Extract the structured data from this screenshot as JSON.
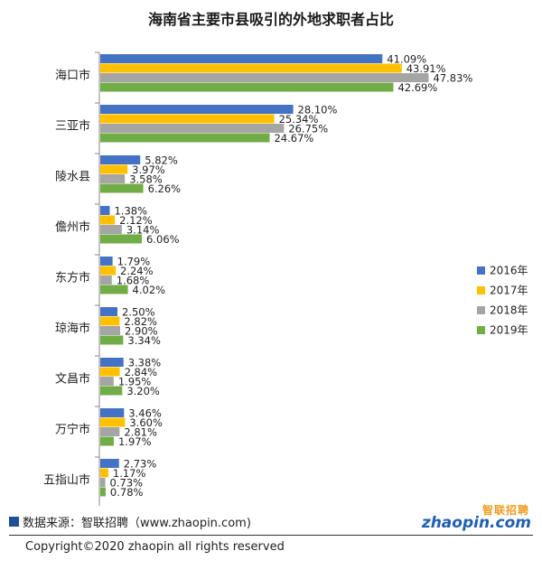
{
  "colors": {
    "s2016": "#4472c4",
    "s2017": "#ffc000",
    "s2018": "#a5a5a5",
    "s2019": "#70ad47",
    "axis": "#888888",
    "source_square": "#1f4e9c",
    "logo_cn": "#f29a1b",
    "logo_en": "#1d5fb5"
  },
  "chart_data": {
    "type": "bar",
    "orientation": "horizontal",
    "title": "海南省主要市县吸引的外地求职者占比",
    "xlabel": "",
    "ylabel": "",
    "xlim": [
      0,
      50
    ],
    "grid": false,
    "legend_position": "right",
    "categories": [
      "海口市",
      "三亚市",
      "陵水县",
      "儋州市",
      "东方市",
      "琼海市",
      "文昌市",
      "万宁市",
      "五指山市"
    ],
    "series": [
      {
        "name": "2016年",
        "values": [
          41.09,
          28.1,
          5.82,
          1.38,
          1.79,
          2.5,
          3.38,
          3.46,
          2.73
        ],
        "labels": [
          "41.09%",
          "28.10%",
          "5.82%",
          "1.38%",
          "1.79%",
          "2.50%",
          "3.38%",
          "3.46%",
          "2.73%"
        ]
      },
      {
        "name": "2017年",
        "values": [
          43.91,
          25.34,
          3.97,
          2.12,
          2.24,
          2.82,
          2.84,
          3.6,
          1.17
        ],
        "labels": [
          "43.91%",
          "25.34%",
          "3.97%",
          "2.12%",
          "2.24%",
          "2.82%",
          "2.84%",
          "3.60%",
          "1.17%"
        ]
      },
      {
        "name": "2018年",
        "values": [
          47.83,
          26.75,
          3.58,
          3.14,
          1.68,
          2.9,
          1.95,
          2.81,
          0.73
        ],
        "labels": [
          "47.83%",
          "26.75%",
          "3.58%",
          "3.14%",
          "1.68%",
          "2.90%",
          "1.95%",
          "2.81%",
          "0.73%"
        ]
      },
      {
        "name": "2019年",
        "values": [
          42.69,
          24.67,
          6.26,
          6.06,
          4.02,
          3.34,
          3.2,
          1.97,
          0.78
        ],
        "labels": [
          "42.69%",
          "24.67%",
          "6.26%",
          "6.06%",
          "4.02%",
          "3.34%",
          "3.20%",
          "1.97%",
          "0.78%"
        ]
      }
    ]
  },
  "footer": {
    "source": "数据来源：智联招聘（www.zhaopin.com)",
    "copyright": "Copyright©2020 zhaopin all rights reserved",
    "logo_cn": "智联招聘",
    "logo_en": "zhaopin.com"
  }
}
